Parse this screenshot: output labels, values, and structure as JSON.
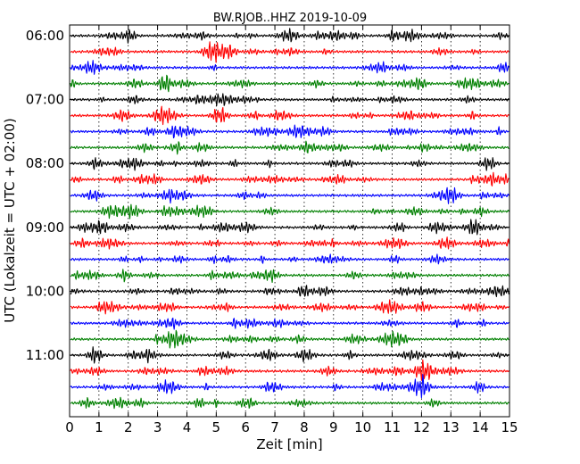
{
  "chart_data": {
    "type": "line",
    "title": "BW.RJOB..HHZ 2019-10-09",
    "xlabel": "Zeit  [min]",
    "ylabel": "UTC (Lokalzeit = UTC + 02:00)",
    "xlim": [
      0,
      15
    ],
    "x_ticks": [
      "0",
      "1",
      "2",
      "3",
      "4",
      "5",
      "6",
      "7",
      "8",
      "9",
      "10",
      "11",
      "12",
      "13",
      "14",
      "15"
    ],
    "y_ticks": [
      "06:00",
      "07:00",
      "08:00",
      "09:00",
      "10:00",
      "11:00"
    ],
    "grid": "vertical dotted",
    "series_colors": [
      "#000000",
      "#ff0000",
      "#0000ff",
      "#008000"
    ],
    "series": [
      {
        "start": "06:00",
        "color": "#000000"
      },
      {
        "start": "06:15",
        "color": "#ff0000"
      },
      {
        "start": "06:30",
        "color": "#0000ff"
      },
      {
        "start": "06:45",
        "color": "#008000"
      },
      {
        "start": "07:00",
        "color": "#000000"
      },
      {
        "start": "07:15",
        "color": "#ff0000"
      },
      {
        "start": "07:30",
        "color": "#0000ff"
      },
      {
        "start": "07:45",
        "color": "#008000"
      },
      {
        "start": "08:00",
        "color": "#000000"
      },
      {
        "start": "08:15",
        "color": "#ff0000"
      },
      {
        "start": "08:30",
        "color": "#0000ff"
      },
      {
        "start": "08:45",
        "color": "#008000"
      },
      {
        "start": "09:00",
        "color": "#000000"
      },
      {
        "start": "09:15",
        "color": "#ff0000"
      },
      {
        "start": "09:30",
        "color": "#0000ff"
      },
      {
        "start": "09:45",
        "color": "#008000"
      },
      {
        "start": "10:00",
        "color": "#000000"
      },
      {
        "start": "10:15",
        "color": "#ff0000"
      },
      {
        "start": "10:30",
        "color": "#0000ff"
      },
      {
        "start": "10:45",
        "color": "#008000"
      },
      {
        "start": "11:00",
        "color": "#000000"
      },
      {
        "start": "11:15",
        "color": "#ff0000"
      },
      {
        "start": "11:30",
        "color": "#0000ff"
      },
      {
        "start": "11:45",
        "color": "#008000"
      }
    ]
  }
}
